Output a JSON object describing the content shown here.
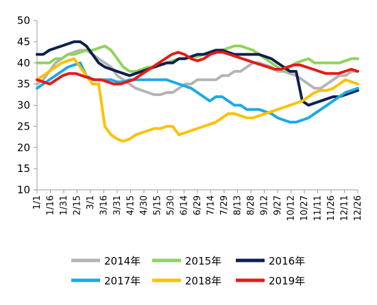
{
  "chart_data": {
    "type": "line",
    "title": "",
    "xlabel": "",
    "ylabel": "",
    "ylim": [
      10,
      50
    ],
    "y_ticks": [
      10,
      15,
      20,
      25,
      30,
      35,
      40,
      45,
      50
    ],
    "x_tick_labels": [
      "1/1",
      "1/16",
      "1/31",
      "2/15",
      "3/1",
      "3/16",
      "3/31",
      "4/15",
      "4/30",
      "5/15",
      "5/30",
      "6/14",
      "6/29",
      "7/14",
      "7/29",
      "8/13",
      "8/28",
      "9/12",
      "9/27",
      "10/12",
      "10/27",
      "11/11",
      "11/26",
      "12/11",
      "12/26"
    ],
    "grid": false,
    "legend": "bottom",
    "series": [
      {
        "name": "2014年",
        "color": "#b4b4b4",
        "values": [
          35,
          36,
          38,
          40,
          41,
          42,
          42.5,
          43,
          43,
          42,
          41,
          40,
          39,
          37,
          36,
          35,
          34,
          33.5,
          33,
          32.5,
          32.5,
          33,
          33,
          34,
          35,
          35,
          36,
          36,
          36,
          36,
          37,
          37,
          38,
          38,
          39,
          40,
          40,
          39.5,
          39,
          38,
          38,
          37.5,
          37,
          36,
          35,
          34,
          34,
          35,
          36,
          37,
          37,
          38,
          38
        ]
      },
      {
        "name": "2015年",
        "color": "#8ed35a",
        "values": [
          40,
          40,
          40,
          41,
          41,
          42,
          42,
          42.5,
          43,
          43,
          43.5,
          44,
          43,
          41,
          39,
          38,
          38,
          38.5,
          39,
          39,
          39.5,
          40,
          40.5,
          41,
          41,
          41.5,
          41.5,
          42,
          42,
          42.5,
          43,
          43.5,
          44,
          44,
          43.5,
          43,
          42,
          41,
          40,
          39,
          38,
          39,
          40,
          40.5,
          41,
          40,
          40,
          40,
          40,
          40,
          40.5,
          41,
          41
        ]
      },
      {
        "name": "2016年",
        "color": "#0c1f4e",
        "values": [
          42,
          42,
          43,
          43.5,
          44,
          44.5,
          45,
          45,
          44,
          42,
          40,
          39,
          38.5,
          38,
          37.5,
          37,
          37.5,
          38,
          38.5,
          39,
          39.5,
          40,
          40,
          41,
          41,
          41.5,
          42,
          42,
          42.5,
          43,
          43,
          42.5,
          42,
          42,
          42,
          42,
          42,
          41.5,
          41,
          40,
          39,
          38,
          38,
          31,
          30,
          30.5,
          31,
          31.5,
          32,
          32,
          32.5,
          33,
          33.5
        ]
      },
      {
        "name": "2017年",
        "color": "#1aa9e8",
        "values": [
          34,
          35,
          36,
          37,
          38,
          39,
          39.5,
          40,
          37,
          36,
          36,
          36,
          36,
          35.5,
          35.5,
          36,
          36,
          36,
          36,
          36,
          36,
          36,
          35.5,
          35,
          34.5,
          34,
          33,
          32,
          31,
          32,
          32,
          31,
          30,
          30,
          29,
          29,
          29,
          28.5,
          28,
          27,
          26.5,
          26,
          26,
          26.5,
          27,
          28,
          29,
          30,
          31,
          32,
          33,
          33.5,
          34
        ]
      },
      {
        "name": "2018年",
        "color": "#ffc000",
        "values": [
          36,
          37,
          38,
          39,
          40,
          40.5,
          41,
          39,
          37,
          35,
          35,
          25,
          23,
          22,
          21.5,
          22,
          23,
          23.5,
          24,
          24.5,
          24.5,
          25,
          25,
          23,
          23.5,
          24,
          24.5,
          25,
          25.5,
          26,
          27,
          28,
          28,
          27.5,
          27,
          27,
          27.5,
          28,
          28.5,
          29,
          29.5,
          30,
          30.5,
          31,
          32,
          33,
          33.5,
          33.5,
          34,
          35,
          36,
          35.5,
          35
        ]
      },
      {
        "name": "2019年",
        "color": "#e61919",
        "values": [
          36,
          35.5,
          35,
          36,
          37,
          37.5,
          37.5,
          37,
          36.5,
          36,
          36,
          35.5,
          35,
          35,
          35.5,
          36,
          37,
          38,
          39,
          40,
          41,
          42,
          42.5,
          42,
          41,
          40.5,
          41,
          42,
          42.5,
          42.5,
          42,
          41.5,
          41,
          40.5,
          40,
          39.5,
          39,
          38.5,
          38.5,
          39,
          39.5,
          39.5,
          39,
          38.5,
          38,
          37.5,
          37.5,
          37.5,
          38,
          38.5,
          38
        ]
      }
    ]
  }
}
